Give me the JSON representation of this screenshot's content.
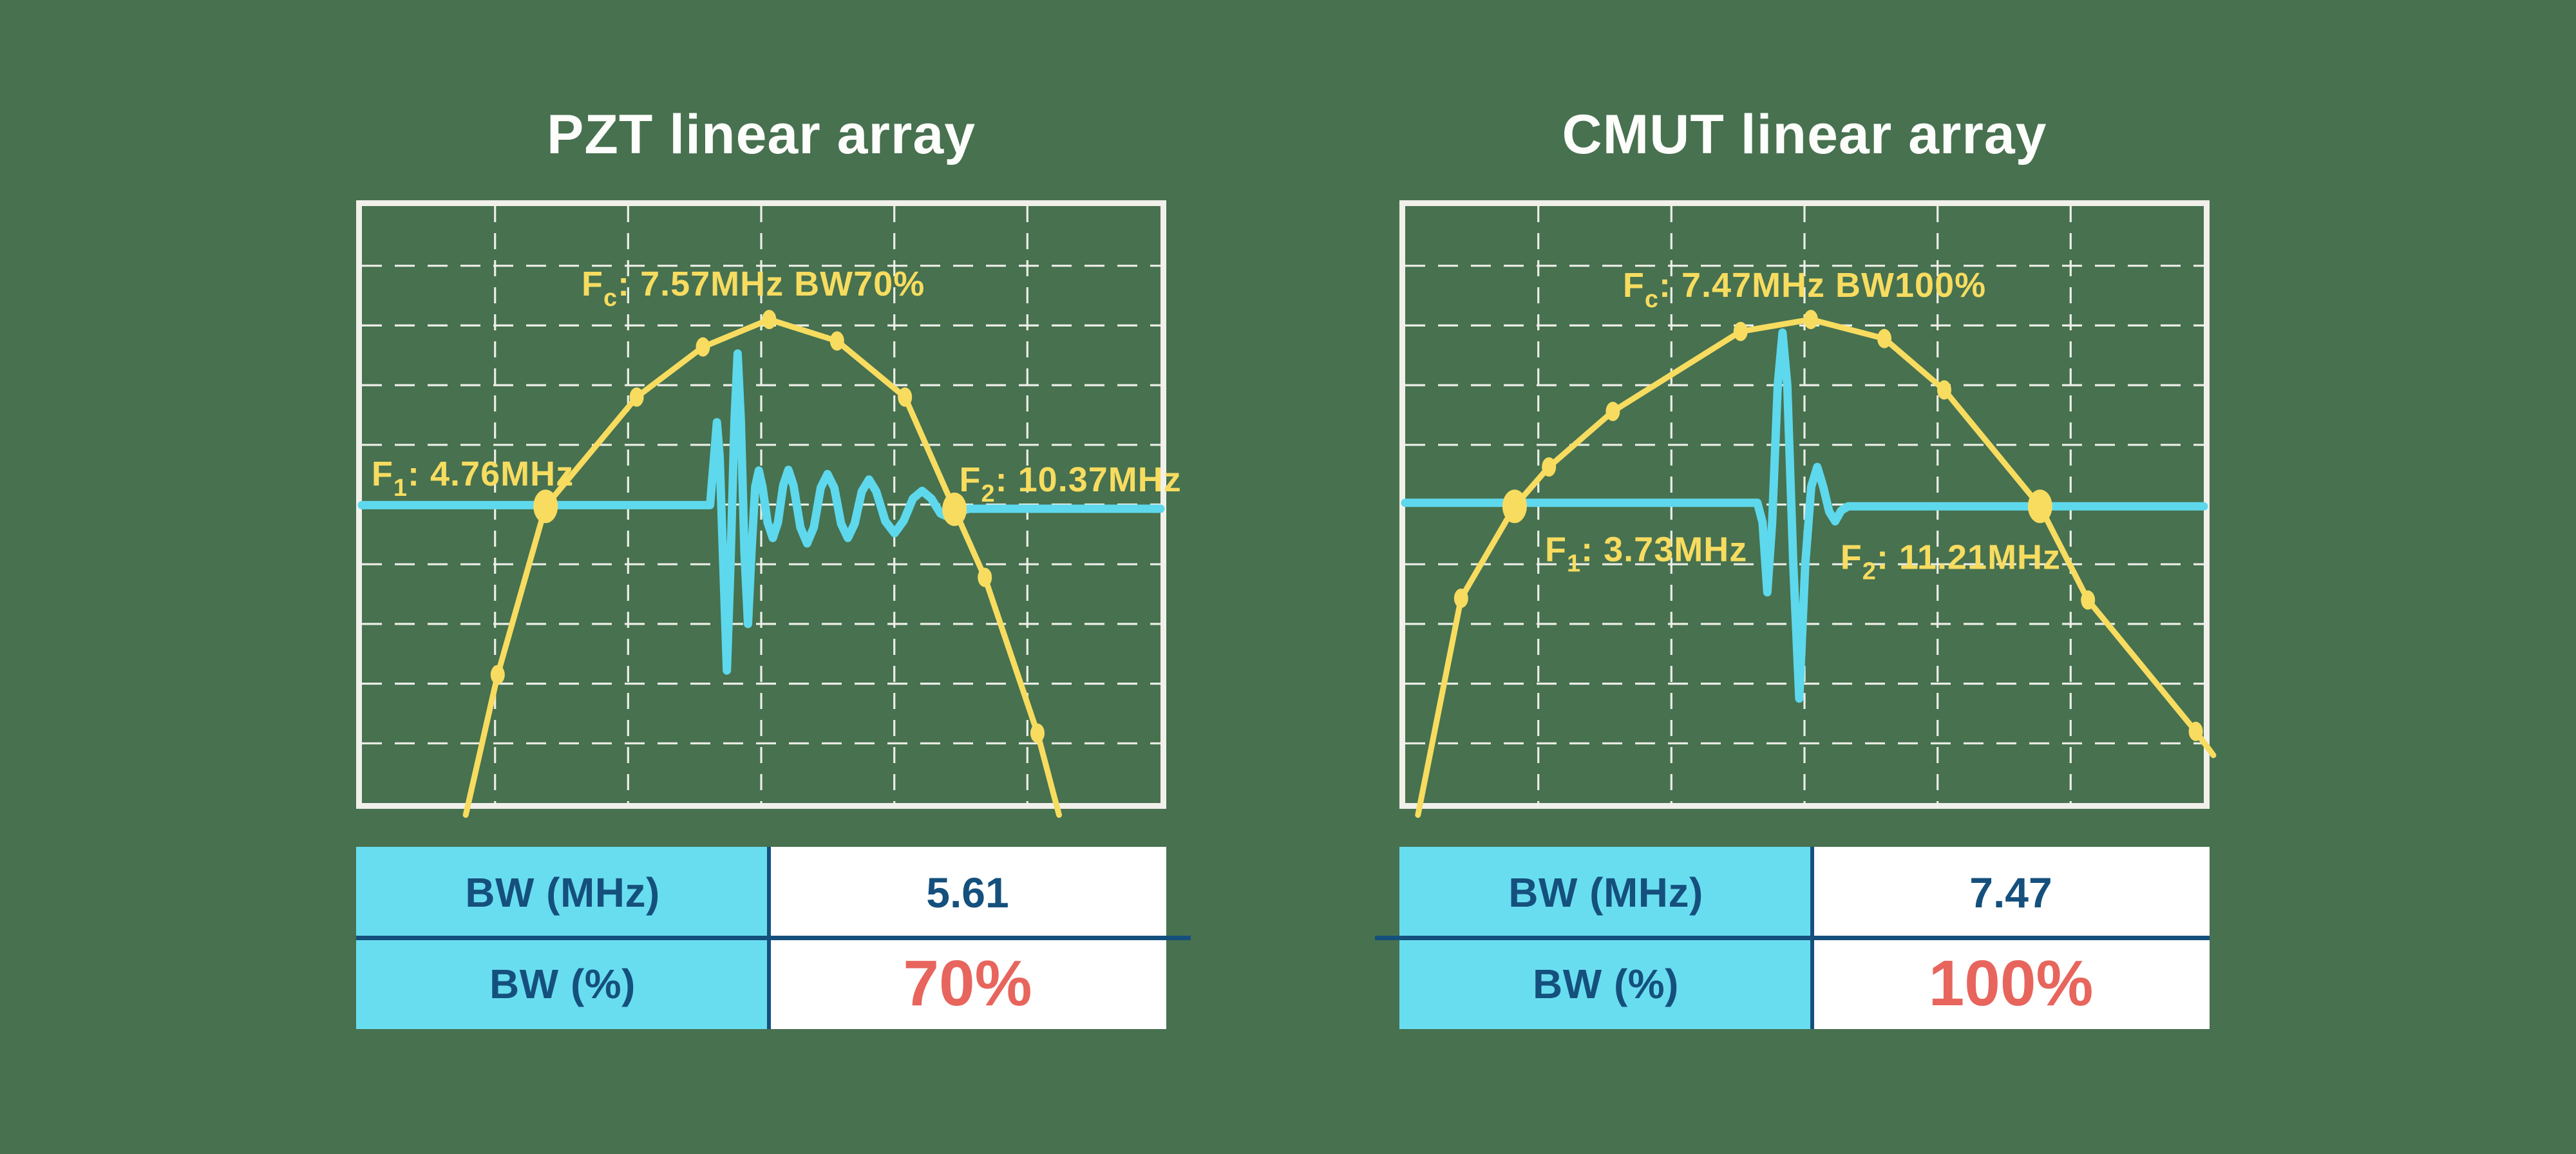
{
  "colors": {
    "background": "#47714F",
    "chart_border": "#F1F0EB",
    "grid": "#F5F5F0",
    "curve_yellow": "#F7DC60",
    "wave_cyan": "#5ED8EC",
    "table_header_cyan": "#69DDF0",
    "navy_text": "#15507D",
    "red_value": "#E7655D",
    "title_white": "#FDFDFB"
  },
  "panels": [
    {
      "key": "pzt",
      "title": "PZT linear array",
      "table": {
        "rows": [
          {
            "label": "BW (MHz)",
            "value": "5.61"
          },
          {
            "label": "BW (%)",
            "value": "70%"
          }
        ]
      }
    },
    {
      "key": "cmut",
      "title": "CMUT linear array",
      "table": {
        "rows": [
          {
            "label": "BW (MHz)",
            "value": "7.47"
          },
          {
            "label": "BW (%)",
            "value": "100%"
          }
        ]
      }
    }
  ],
  "chart_data": [
    {
      "type": "line",
      "title": "PZT linear array",
      "fc_mhz": 7.57,
      "f1_mhz": 4.76,
      "f2_mhz": 10.37,
      "bw_mhz": 5.61,
      "bw_pct": 70,
      "grid": {
        "cols": 6,
        "rows": 10,
        "style": "dashed-white",
        "axis_ticks": "none"
      },
      "baseline_frac": 0.503,
      "labels": [
        {
          "name": "fc-label",
          "parts": [
            "F",
            "c",
            ": 7.57MHz BW70%"
          ],
          "x": 0.49,
          "y": 0.15,
          "anchor": "middle"
        },
        {
          "name": "f1-label",
          "parts": [
            "F",
            "1",
            ": 4.76MHz"
          ],
          "x": 0.012,
          "y": 0.468,
          "anchor": "start"
        },
        {
          "name": "f2-label",
          "parts": [
            "F",
            "2",
            ": 10.37MHz"
          ],
          "x": 0.748,
          "y": 0.478,
          "anchor": "start"
        }
      ],
      "series": [
        {
          "name": "frequency-response",
          "color": "#F7DC60",
          "points_frac": [
            [
              0.13,
              1.02
            ],
            [
              0.17,
              0.785
            ],
            [
              0.23,
              0.503
            ],
            [
              0.344,
              0.32
            ],
            [
              0.427,
              0.236
            ],
            [
              0.51,
              0.19
            ],
            [
              0.595,
              0.226
            ],
            [
              0.68,
              0.32
            ],
            [
              0.742,
              0.508
            ],
            [
              0.78,
              0.622
            ],
            [
              0.846,
              0.883
            ],
            [
              0.873,
              1.02
            ]
          ],
          "markers_frac": [
            [
              0.17,
              0.785
            ],
            [
              0.344,
              0.32
            ],
            [
              0.427,
              0.236
            ],
            [
              0.51,
              0.19
            ],
            [
              0.595,
              0.226
            ],
            [
              0.68,
              0.32
            ],
            [
              0.78,
              0.622
            ],
            [
              0.846,
              0.883
            ]
          ],
          "crossing_markers_frac": [
            [
              0.23,
              0.503
            ],
            [
              0.742,
              0.508
            ]
          ]
        },
        {
          "name": "pulse-echo-waveform",
          "color": "#5ED8EC",
          "points_frac": [
            [
              0.0,
              0.501
            ],
            [
              0.436,
              0.501
            ],
            [
              0.441,
              0.42
            ],
            [
              0.4445,
              0.362
            ],
            [
              0.448,
              0.42
            ],
            [
              0.4525,
              0.6
            ],
            [
              0.457,
              0.778
            ],
            [
              0.4615,
              0.6
            ],
            [
              0.4665,
              0.36
            ],
            [
              0.4705,
              0.247
            ],
            [
              0.4745,
              0.36
            ],
            [
              0.479,
              0.58
            ],
            [
              0.4835,
              0.7
            ],
            [
              0.488,
              0.575
            ],
            [
              0.4925,
              0.47
            ],
            [
              0.497,
              0.443
            ],
            [
              0.5015,
              0.47
            ],
            [
              0.508,
              0.53
            ],
            [
              0.5145,
              0.556
            ],
            [
              0.521,
              0.53
            ],
            [
              0.5275,
              0.468
            ],
            [
              0.534,
              0.442
            ],
            [
              0.5405,
              0.468
            ],
            [
              0.549,
              0.538
            ],
            [
              0.5575,
              0.565
            ],
            [
              0.566,
              0.538
            ],
            [
              0.5745,
              0.472
            ],
            [
              0.583,
              0.449
            ],
            [
              0.5915,
              0.472
            ],
            [
              0.6,
              0.532
            ],
            [
              0.6085,
              0.556
            ],
            [
              0.617,
              0.532
            ],
            [
              0.626,
              0.478
            ],
            [
              0.635,
              0.458
            ],
            [
              0.644,
              0.478
            ],
            [
              0.6555,
              0.528
            ],
            [
              0.667,
              0.548
            ],
            [
              0.6785,
              0.527
            ],
            [
              0.69,
              0.49
            ],
            [
              0.7015,
              0.477
            ],
            [
              0.713,
              0.49
            ],
            [
              0.7245,
              0.515
            ],
            [
              0.736,
              0.522
            ],
            [
              0.7475,
              0.512
            ],
            [
              0.76,
              0.507
            ],
            [
              1.0,
              0.507
            ]
          ]
        }
      ]
    },
    {
      "type": "line",
      "title": "CMUT linear array",
      "fc_mhz": 7.47,
      "f1_mhz": 3.73,
      "f2_mhz": 11.21,
      "bw_mhz": 7.47,
      "bw_pct": 100,
      "grid": {
        "cols": 6,
        "rows": 10,
        "style": "dashed-white",
        "axis_ticks": "none"
      },
      "baseline_frac": 0.5,
      "labels": [
        {
          "name": "fc-label",
          "parts": [
            "F",
            "c",
            ": 7.47MHz BW100%"
          ],
          "x": 0.5,
          "y": 0.152,
          "anchor": "middle"
        },
        {
          "name": "f1-label",
          "parts": [
            "F",
            "1",
            ": 3.73MHz"
          ],
          "x": 0.175,
          "y": 0.595,
          "anchor": "start"
        },
        {
          "name": "f2-label",
          "parts": [
            "F",
            "2",
            ": 11.21MHz"
          ],
          "x": 0.545,
          "y": 0.608,
          "anchor": "start"
        }
      ],
      "series": [
        {
          "name": "frequency-response",
          "color": "#F7DC60",
          "points_frac": [
            [
              0.016,
              1.02
            ],
            [
              0.07,
              0.657
            ],
            [
              0.137,
              0.503
            ],
            [
              0.18,
              0.437
            ],
            [
              0.26,
              0.344
            ],
            [
              0.42,
              0.21
            ],
            [
              0.508,
              0.19
            ],
            [
              0.6,
              0.222
            ],
            [
              0.675,
              0.308
            ],
            [
              0.795,
              0.503
            ],
            [
              0.855,
              0.66
            ],
            [
              0.99,
              0.88
            ],
            [
              1.012,
              0.92
            ]
          ],
          "markers_frac": [
            [
              0.07,
              0.657
            ],
            [
              0.18,
              0.437
            ],
            [
              0.26,
              0.344
            ],
            [
              0.42,
              0.21
            ],
            [
              0.508,
              0.19
            ],
            [
              0.6,
              0.222
            ],
            [
              0.675,
              0.308
            ],
            [
              0.855,
              0.66
            ],
            [
              0.99,
              0.88
            ]
          ],
          "crossing_markers_frac": [
            [
              0.137,
              0.503
            ],
            [
              0.795,
              0.503
            ]
          ]
        },
        {
          "name": "pulse-echo-waveform",
          "color": "#5ED8EC",
          "points_frac": [
            [
              0.0,
              0.497
            ],
            [
              0.441,
              0.497
            ],
            [
              0.4475,
              0.53
            ],
            [
              0.4535,
              0.647
            ],
            [
              0.4595,
              0.53
            ],
            [
              0.4665,
              0.3
            ],
            [
              0.4725,
              0.212
            ],
            [
              0.4785,
              0.3
            ],
            [
              0.486,
              0.6
            ],
            [
              0.4935,
              0.825
            ],
            [
              0.501,
              0.6
            ],
            [
              0.5085,
              0.47
            ],
            [
              0.516,
              0.437
            ],
            [
              0.5235,
              0.47
            ],
            [
              0.531,
              0.512
            ],
            [
              0.5385,
              0.528
            ],
            [
              0.546,
              0.51
            ],
            [
              0.5545,
              0.503
            ],
            [
              1.0,
              0.503
            ]
          ]
        }
      ]
    }
  ]
}
